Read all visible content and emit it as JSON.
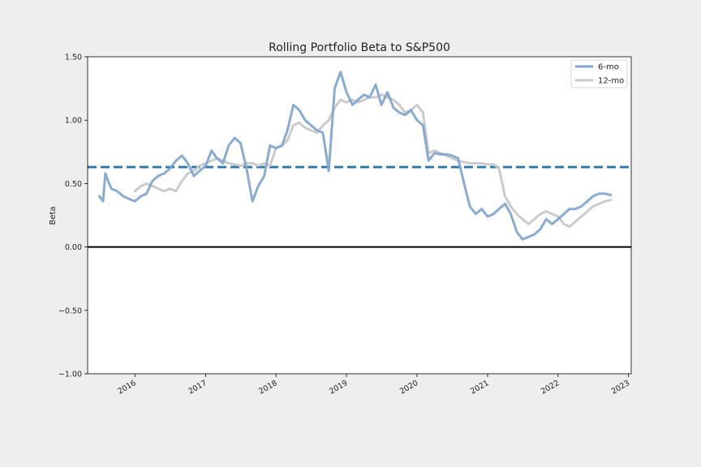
{
  "chart_data": {
    "type": "line",
    "title": "Rolling Portfolio Beta to S&P500",
    "ylabel": "Beta",
    "xlabel": "",
    "ylim": [
      -1.0,
      1.5
    ],
    "xlim": [
      "2015-05-01",
      "2023-01-15"
    ],
    "y_ticks": [
      -1.0,
      -0.5,
      0.0,
      0.5,
      1.0,
      1.5
    ],
    "y_tick_labels": [
      "−1.00",
      "−0.50",
      "0.00",
      "0.50",
      "1.00",
      "1.50"
    ],
    "x_ticks": [
      "2016-01-01",
      "2017-01-01",
      "2018-01-01",
      "2019-01-01",
      "2020-01-01",
      "2021-01-01",
      "2022-01-01",
      "2023-01-01"
    ],
    "x_tick_labels": [
      "2016",
      "2017",
      "2018",
      "2019",
      "2020",
      "2021",
      "2022",
      "2023"
    ],
    "grid": false,
    "legend": "top-right",
    "colors": {
      "six_mo": "#7fa5cc",
      "twelve_mo": "#c8c8c8",
      "mean_line": "#2e75a8",
      "zero_line": "#000000"
    },
    "reference_lines": [
      {
        "y": 0.63,
        "style": "dashed",
        "color": "#2e75a8"
      },
      {
        "y": 0.0,
        "style": "solid",
        "color": "#000000"
      }
    ],
    "series": [
      {
        "name": "6-mo",
        "x": [
          "2015-07-01",
          "2015-07-20",
          "2015-08-01",
          "2015-08-15",
          "2015-09-01",
          "2015-10-01",
          "2015-11-01",
          "2015-12-01",
          "2016-01-01",
          "2016-02-01",
          "2016-03-01",
          "2016-04-01",
          "2016-05-01",
          "2016-06-01",
          "2016-07-01",
          "2016-08-01",
          "2016-09-01",
          "2016-10-01",
          "2016-11-01",
          "2016-12-01",
          "2017-01-01",
          "2017-02-01",
          "2017-03-01",
          "2017-04-01",
          "2017-05-01",
          "2017-06-01",
          "2017-07-01",
          "2017-08-01",
          "2017-09-01",
          "2017-10-01",
          "2017-11-01",
          "2017-12-01",
          "2018-01-01",
          "2018-02-01",
          "2018-03-01",
          "2018-04-01",
          "2018-05-01",
          "2018-06-01",
          "2018-07-01",
          "2018-08-01",
          "2018-09-01",
          "2018-10-01",
          "2018-11-01",
          "2018-12-01",
          "2019-01-01",
          "2019-02-01",
          "2019-03-01",
          "2019-04-01",
          "2019-05-01",
          "2019-06-01",
          "2019-07-01",
          "2019-08-01",
          "2019-09-01",
          "2019-10-01",
          "2019-11-01",
          "2019-12-01",
          "2020-01-01",
          "2020-02-01",
          "2020-03-01",
          "2020-04-01",
          "2020-05-01",
          "2020-06-01",
          "2020-07-01",
          "2020-08-01",
          "2020-09-01",
          "2020-10-01",
          "2020-11-01",
          "2020-12-01",
          "2021-01-01",
          "2021-02-01",
          "2021-03-01",
          "2021-04-01",
          "2021-05-01",
          "2021-06-01",
          "2021-07-01",
          "2021-08-01",
          "2021-09-01",
          "2021-10-01",
          "2021-11-01",
          "2021-12-01",
          "2022-01-01",
          "2022-02-01",
          "2022-03-01",
          "2022-04-01",
          "2022-05-01",
          "2022-06-01",
          "2022-07-01",
          "2022-08-01",
          "2022-09-01",
          "2022-10-01"
        ],
        "values": [
          0.4,
          0.36,
          0.58,
          0.52,
          0.46,
          0.44,
          0.4,
          0.38,
          0.36,
          0.4,
          0.42,
          0.52,
          0.56,
          0.58,
          0.62,
          0.68,
          0.72,
          0.66,
          0.56,
          0.6,
          0.64,
          0.76,
          0.7,
          0.66,
          0.8,
          0.86,
          0.82,
          0.62,
          0.36,
          0.48,
          0.56,
          0.8,
          0.78,
          0.8,
          0.92,
          1.12,
          1.08,
          1.0,
          0.96,
          0.92,
          0.9,
          0.6,
          1.25,
          1.38,
          1.22,
          1.12,
          1.16,
          1.2,
          1.18,
          1.28,
          1.12,
          1.22,
          1.1,
          1.06,
          1.04,
          1.08,
          1.0,
          0.96,
          0.68,
          0.74,
          0.73,
          0.73,
          0.72,
          0.7,
          0.5,
          0.32,
          0.26,
          0.3,
          0.24,
          0.26,
          0.3,
          0.34,
          0.26,
          0.12,
          0.06,
          0.08,
          0.1,
          0.14,
          0.22,
          0.18,
          0.22,
          0.26,
          0.3,
          0.3,
          0.32,
          0.36,
          0.4,
          0.42,
          0.42,
          0.41
        ]
      },
      {
        "name": "12-mo",
        "x": [
          "2016-01-01",
          "2016-02-01",
          "2016-03-01",
          "2016-04-01",
          "2016-05-01",
          "2016-06-01",
          "2016-07-01",
          "2016-08-01",
          "2016-09-01",
          "2016-10-01",
          "2016-11-01",
          "2016-12-01",
          "2017-01-01",
          "2017-02-01",
          "2017-03-01",
          "2017-04-01",
          "2017-05-01",
          "2017-06-01",
          "2017-07-01",
          "2017-08-01",
          "2017-09-01",
          "2017-10-01",
          "2017-11-01",
          "2017-12-01",
          "2018-01-01",
          "2018-02-01",
          "2018-03-01",
          "2018-04-01",
          "2018-05-01",
          "2018-06-01",
          "2018-07-01",
          "2018-08-01",
          "2018-09-01",
          "2018-10-01",
          "2018-11-01",
          "2018-12-01",
          "2019-01-01",
          "2019-02-01",
          "2019-03-01",
          "2019-04-01",
          "2019-05-01",
          "2019-06-01",
          "2019-07-01",
          "2019-08-01",
          "2019-09-01",
          "2019-10-01",
          "2019-11-01",
          "2019-12-01",
          "2020-01-01",
          "2020-02-01",
          "2020-03-01",
          "2020-04-01",
          "2020-05-01",
          "2020-06-01",
          "2020-07-01",
          "2020-08-01",
          "2020-09-01",
          "2020-10-01",
          "2020-11-01",
          "2020-12-01",
          "2021-01-01",
          "2021-02-01",
          "2021-03-01",
          "2021-04-01",
          "2021-05-01",
          "2021-06-01",
          "2021-07-01",
          "2021-08-01",
          "2021-09-01",
          "2021-10-01",
          "2021-11-01",
          "2021-12-01",
          "2022-01-01",
          "2022-02-01",
          "2022-03-01",
          "2022-04-01",
          "2022-05-01",
          "2022-06-01",
          "2022-07-01",
          "2022-08-01",
          "2022-09-01",
          "2022-10-01"
        ],
        "values": [
          0.44,
          0.48,
          0.5,
          0.48,
          0.46,
          0.44,
          0.46,
          0.44,
          0.52,
          0.58,
          0.6,
          0.64,
          0.66,
          0.68,
          0.7,
          0.68,
          0.66,
          0.65,
          0.64,
          0.66,
          0.66,
          0.64,
          0.66,
          0.64,
          0.78,
          0.8,
          0.84,
          0.96,
          0.98,
          0.94,
          0.92,
          0.9,
          0.96,
          1.0,
          1.1,
          1.16,
          1.14,
          1.16,
          1.14,
          1.16,
          1.18,
          1.18,
          1.2,
          1.18,
          1.16,
          1.12,
          1.06,
          1.08,
          1.12,
          1.06,
          0.74,
          0.76,
          0.74,
          0.72,
          0.7,
          0.68,
          0.67,
          0.66,
          0.66,
          0.66,
          0.65,
          0.65,
          0.62,
          0.4,
          0.32,
          0.26,
          0.22,
          0.18,
          0.22,
          0.26,
          0.28,
          0.26,
          0.24,
          0.18,
          0.16,
          0.2,
          0.24,
          0.28,
          0.32,
          0.34,
          0.36,
          0.37
        ]
      }
    ]
  }
}
